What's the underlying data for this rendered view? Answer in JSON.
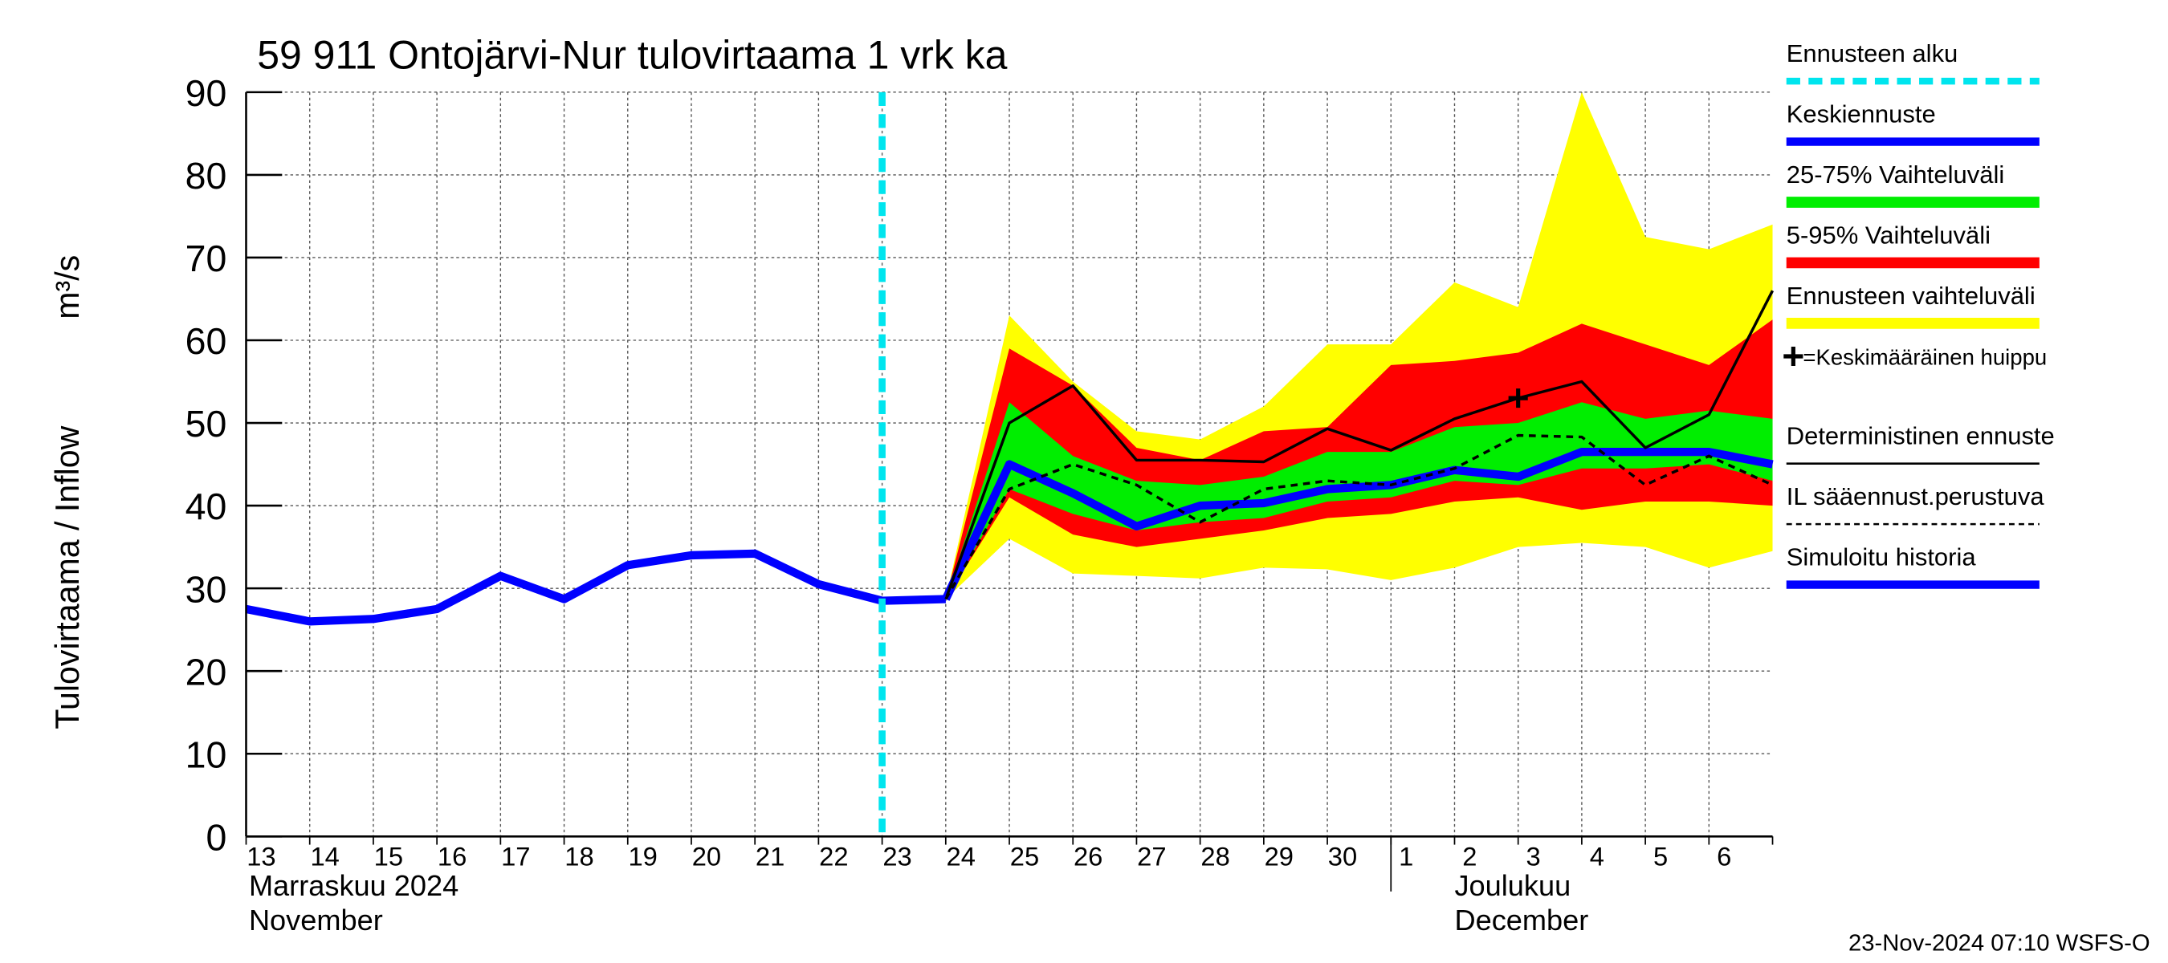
{
  "chart_data": {
    "type": "line",
    "title": "59 911 Ontojärvi-Nur tulovirtaama 1 vrk ka",
    "y_label": "Tulovirtaama / Inflow",
    "y_unit": "m³/s",
    "month_labels": [
      "Marraskuu 2024",
      "November",
      "Joulukuu",
      "December"
    ],
    "footer": "23-Nov-2024 07:10 WSFS-O",
    "categories": [
      "13",
      "14",
      "15",
      "16",
      "17",
      "18",
      "19",
      "20",
      "21",
      "22",
      "23",
      "24",
      "25",
      "26",
      "27",
      "28",
      "29",
      "30",
      "1",
      "2",
      "3",
      "4",
      "5",
      "6",
      null
    ],
    "ylim": [
      0,
      90
    ],
    "yticks": [
      0,
      10,
      20,
      30,
      40,
      50,
      60,
      70,
      80,
      90
    ],
    "grid": true,
    "series": [
      {
        "name": "Ennusteen alku",
        "kind": "vline",
        "color": "#00e5ee",
        "x": 10
      },
      {
        "name": "Keskiennuste",
        "kind": "line",
        "color": "#0000ff",
        "values": [
          null,
          null,
          null,
          null,
          null,
          null,
          null,
          null,
          null,
          null,
          null,
          28.7,
          45,
          41.5,
          37.5,
          40,
          40.3,
          42,
          42.5,
          44.3,
          43.5,
          46.5,
          46.5,
          46.5,
          45
        ]
      },
      {
        "name": "25-75% Vaihteluväli",
        "kind": "band",
        "color": "#00ee00",
        "upper": [
          null,
          null,
          null,
          null,
          null,
          null,
          null,
          null,
          null,
          null,
          28.5,
          28.7,
          52.5,
          46,
          43,
          42.5,
          43.5,
          46.5,
          46.5,
          49.5,
          50,
          52.5,
          50.5,
          51.5,
          50.5
        ],
        "lower": [
          null,
          null,
          null,
          null,
          null,
          null,
          null,
          null,
          null,
          null,
          28.5,
          28.7,
          42,
          39,
          37,
          38,
          38.5,
          40.5,
          41,
          43,
          42.5,
          44.5,
          44.5,
          45,
          43
        ]
      },
      {
        "name": "5-95% Vaihteluväli",
        "kind": "band",
        "color": "#ff0000",
        "upper": [
          null,
          null,
          null,
          null,
          null,
          null,
          null,
          null,
          null,
          null,
          28.5,
          28.7,
          59,
          54.5,
          47,
          45.5,
          49,
          49.5,
          57,
          57.5,
          58.5,
          62,
          59.5,
          57,
          62.5
        ],
        "lower": [
          null,
          null,
          null,
          null,
          null,
          null,
          null,
          null,
          null,
          null,
          28.5,
          28.7,
          41,
          36.5,
          35,
          36,
          37,
          38.5,
          39,
          40.5,
          41,
          39.5,
          40.5,
          40.5,
          40
        ]
      },
      {
        "name": "Ennusteen vaihteluväli",
        "kind": "band",
        "color": "#ffff00",
        "upper": [
          null,
          null,
          null,
          null,
          null,
          null,
          null,
          null,
          null,
          null,
          28.5,
          28.7,
          63,
          55,
          49,
          48,
          52,
          59.5,
          59.5,
          67,
          64,
          90,
          72.5,
          71,
          74
        ],
        "lower": [
          null,
          null,
          null,
          null,
          null,
          null,
          null,
          null,
          null,
          null,
          28.5,
          28.7,
          36,
          31.8,
          31.5,
          31.2,
          32.5,
          32.3,
          31,
          32.5,
          35,
          35.5,
          35,
          32.5,
          34.5
        ]
      },
      {
        "name": "=Keskimääräinen huippu",
        "kind": "point",
        "color": "#000000",
        "x": 20,
        "value": 53
      },
      {
        "name": "Deterministinen ennuste",
        "kind": "line",
        "color": "#000000",
        "values": [
          null,
          null,
          null,
          null,
          null,
          null,
          null,
          null,
          null,
          null,
          null,
          28.7,
          50,
          54.5,
          45.5,
          45.5,
          45.3,
          49.3,
          46.7,
          50.5,
          53,
          55,
          47,
          51,
          66
        ]
      },
      {
        "name": "IL sääennust.perustuva",
        "kind": "dashed",
        "color": "#000000",
        "values": [
          null,
          null,
          null,
          null,
          null,
          null,
          null,
          null,
          null,
          null,
          null,
          28.7,
          42,
          45,
          42.5,
          38,
          42,
          43,
          42.5,
          44.5,
          48.5,
          48.3,
          42.5,
          46,
          42.5
        ]
      },
      {
        "name": "Simuloitu historia",
        "kind": "line",
        "color": "#0000ff",
        "values": [
          27.5,
          26,
          26.3,
          27.5,
          31.5,
          28.7,
          32.8,
          34,
          34.2,
          30.5,
          28.5,
          28.7,
          null,
          null,
          null,
          null,
          null,
          null,
          null,
          null,
          null,
          null,
          null,
          null,
          null
        ]
      }
    ]
  }
}
